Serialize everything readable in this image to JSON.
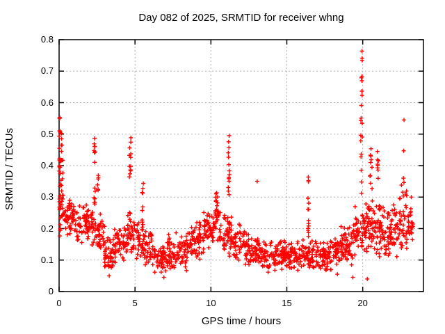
{
  "figure": {
    "background_color": "#ffffff",
    "border_color": "#000000",
    "grid_color": "#b0b0b0",
    "marker_color": "#ff0000"
  },
  "chart_data": {
    "type": "scatter",
    "title": "Day 082 of 2025, SRMTID for receiver whng",
    "xlabel": "GPS time / hours",
    "ylabel": "SRMTID / TECUs",
    "xlim": [
      0,
      24
    ],
    "ylim": [
      0,
      0.8
    ],
    "xticks": {
      "values": [
        0,
        5,
        10,
        15,
        20
      ],
      "labels": [
        "0",
        "5",
        "10",
        "15",
        "20"
      ]
    },
    "yticks": {
      "values": [
        0,
        0.1,
        0.2,
        0.3,
        0.4,
        0.5,
        0.6,
        0.7,
        0.8
      ],
      "labels": [
        "0",
        "0.1",
        "0.2",
        "0.3",
        "0.4",
        "0.5",
        "0.6",
        "0.7",
        "0.8"
      ]
    },
    "grid": "dashed",
    "marker": "plus",
    "marker_color": "#ff0000",
    "legend": "none",
    "seed": 82,
    "point_bands": [
      [
        0.0,
        0.35,
        0.19,
        0.36,
        22
      ],
      [
        0.35,
        1.0,
        0.17,
        0.3,
        48
      ],
      [
        1.0,
        2.0,
        0.15,
        0.28,
        62
      ],
      [
        2.0,
        2.45,
        0.13,
        0.28,
        26
      ],
      [
        2.45,
        3.0,
        0.12,
        0.26,
        36
      ],
      [
        3.0,
        3.6,
        0.06,
        0.18,
        40
      ],
      [
        3.6,
        4.5,
        0.08,
        0.22,
        56
      ],
      [
        4.5,
        5.3,
        0.1,
        0.25,
        50
      ],
      [
        5.3,
        6.2,
        0.08,
        0.22,
        56
      ],
      [
        6.2,
        7.2,
        0.05,
        0.16,
        60
      ],
      [
        7.2,
        8.5,
        0.06,
        0.19,
        80
      ],
      [
        8.5,
        9.5,
        0.1,
        0.23,
        62
      ],
      [
        9.5,
        10.2,
        0.12,
        0.27,
        46
      ],
      [
        10.2,
        10.6,
        0.14,
        0.32,
        26
      ],
      [
        10.6,
        11.5,
        0.11,
        0.26,
        55
      ],
      [
        11.5,
        12.5,
        0.08,
        0.22,
        64
      ],
      [
        12.5,
        13.5,
        0.07,
        0.18,
        64
      ],
      [
        13.5,
        15.0,
        0.06,
        0.17,
        95
      ],
      [
        15.0,
        16.3,
        0.06,
        0.17,
        78
      ],
      [
        16.3,
        17.5,
        0.06,
        0.17,
        76
      ],
      [
        17.5,
        18.5,
        0.05,
        0.18,
        64
      ],
      [
        18.5,
        19.4,
        0.07,
        0.22,
        60
      ],
      [
        19.4,
        20.0,
        0.1,
        0.28,
        38
      ],
      [
        20.0,
        20.5,
        0.12,
        0.32,
        36
      ],
      [
        20.5,
        21.5,
        0.1,
        0.3,
        70
      ],
      [
        21.5,
        22.4,
        0.1,
        0.28,
        62
      ],
      [
        22.4,
        23.0,
        0.12,
        0.35,
        42
      ],
      [
        23.0,
        23.35,
        0.14,
        0.28,
        26
      ]
    ],
    "point_spikes": [
      [
        0.05,
        0.17,
        0.59,
        26,
        0.1
      ],
      [
        0.18,
        0.33,
        0.52,
        12,
        0.15
      ],
      [
        2.35,
        0.28,
        0.5,
        14,
        0.1
      ],
      [
        2.55,
        0.3,
        0.42,
        6,
        0.08
      ],
      [
        4.68,
        0.22,
        0.5,
        16,
        0.1
      ],
      [
        5.5,
        0.2,
        0.35,
        10,
        0.1
      ],
      [
        10.35,
        0.25,
        0.32,
        8,
        0.12
      ],
      [
        11.18,
        0.28,
        0.52,
        14,
        0.08
      ],
      [
        16.42,
        0.17,
        0.385,
        14,
        0.06
      ],
      [
        19.92,
        0.3,
        0.787,
        20,
        0.1
      ],
      [
        20.55,
        0.32,
        0.47,
        10,
        0.15
      ],
      [
        21.0,
        0.33,
        0.445,
        8,
        0.06
      ]
    ],
    "point_outliers": [
      [
        13.05,
        0.35
      ],
      [
        22.72,
        0.545
      ],
      [
        22.7,
        0.447
      ],
      [
        22.68,
        0.36
      ],
      [
        19.35,
        0.045
      ],
      [
        20.3,
        0.04
      ],
      [
        6.9,
        0.045
      ],
      [
        3.3,
        0.05
      ],
      [
        23.2,
        0.3
      ]
    ]
  }
}
